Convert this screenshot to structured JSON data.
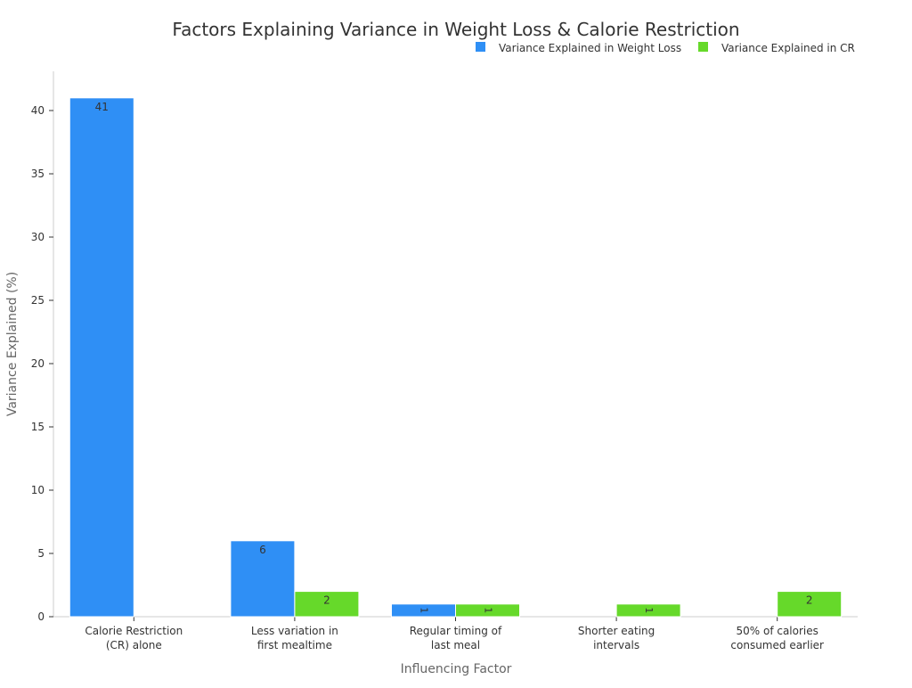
{
  "chart_data": {
    "type": "bar",
    "title": "Factors Explaining Variance in Weight Loss & Calorie Restriction",
    "xlabel": "Influencing Factor",
    "ylabel": "Variance Explained (%)",
    "categories": [
      [
        "Calorie Restriction",
        "(CR) alone"
      ],
      [
        "Less variation in",
        "first mealtime"
      ],
      [
        "Regular timing of",
        "last meal"
      ],
      [
        "Shorter eating",
        "intervals"
      ],
      [
        "50% of calories",
        "consumed earlier"
      ]
    ],
    "series": [
      {
        "name": "Variance Explained in Weight Loss",
        "color": "#2f8ff5",
        "values": [
          41,
          6,
          1,
          0,
          0
        ]
      },
      {
        "name": "Variance Explained in CR",
        "color": "#66d92a",
        "values": [
          0,
          2,
          1,
          1,
          2
        ]
      }
    ],
    "yticks": [
      0,
      5,
      10,
      15,
      20,
      25,
      30,
      35,
      40
    ],
    "ylim": [
      0,
      43.1
    ],
    "grid": false,
    "legend": "top-right"
  }
}
